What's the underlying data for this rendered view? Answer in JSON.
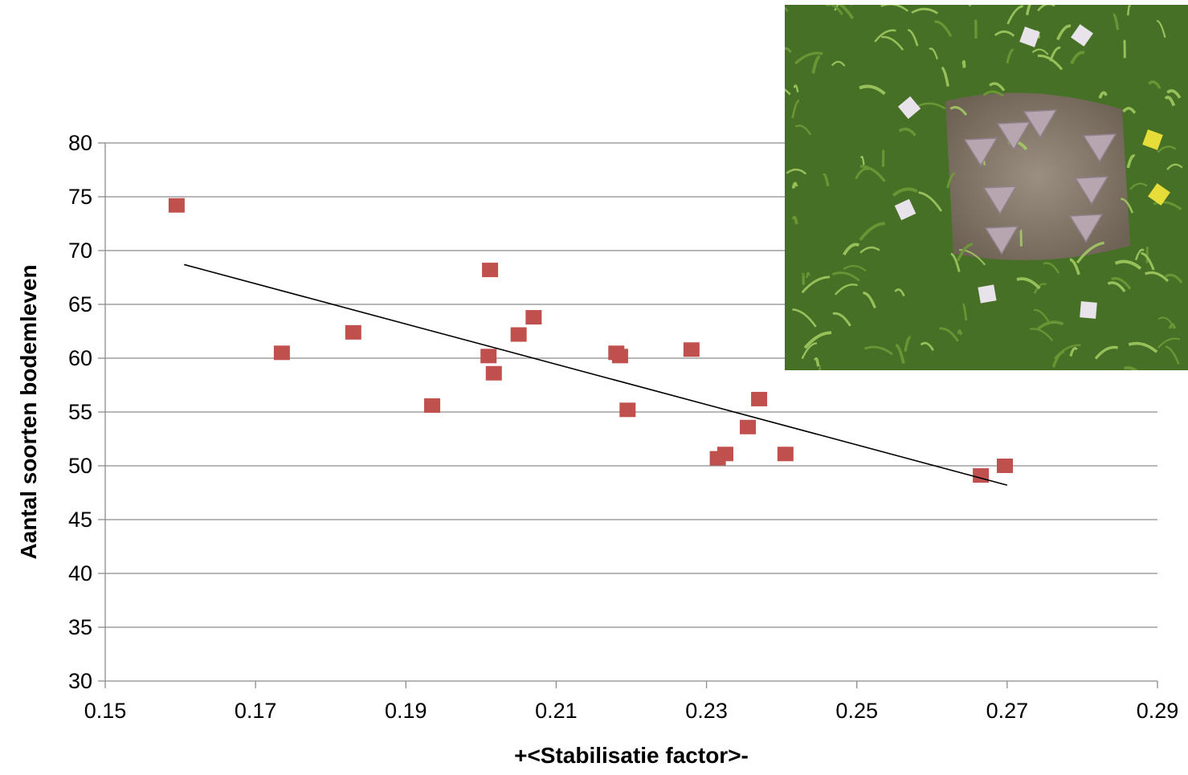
{
  "chart_data": {
    "type": "scatter",
    "xlabel": "+<Stabilisatie factor>-",
    "ylabel": "Aantal soorten bodemleven",
    "xlim": [
      0.15,
      0.29
    ],
    "ylim": [
      30,
      80
    ],
    "x_ticks": [
      "0.15",
      "0.17",
      "0.19",
      "0.21",
      "0.23",
      "0.25",
      "0.27",
      "0.29"
    ],
    "y_ticks": [
      "30",
      "35",
      "40",
      "45",
      "50",
      "55",
      "60",
      "65",
      "70",
      "75",
      "80"
    ],
    "grid": "horizontal",
    "marker_color": "#C0504D",
    "trendline_color": "#000000",
    "series": [
      {
        "x": [
          0.1595,
          0.1735,
          0.183,
          0.1935,
          0.201,
          0.2012,
          0.2017,
          0.205,
          0.207,
          0.218,
          0.2185,
          0.2195,
          0.228,
          0.2315,
          0.2325,
          0.2355,
          0.237,
          0.2405,
          0.2665,
          0.2697
        ],
        "y": [
          74.2,
          60.5,
          62.4,
          55.6,
          60.2,
          68.2,
          58.6,
          62.2,
          63.8,
          60.5,
          60.2,
          55.2,
          60.8,
          50.7,
          51.1,
          53.6,
          56.2,
          51.1,
          49.1,
          50.0
        ]
      }
    ],
    "trendline": {
      "x": [
        0.1605,
        0.27
      ],
      "y": [
        68.7,
        48.2
      ]
    }
  },
  "photo": {
    "description_icon": "soil-sample-photo"
  }
}
